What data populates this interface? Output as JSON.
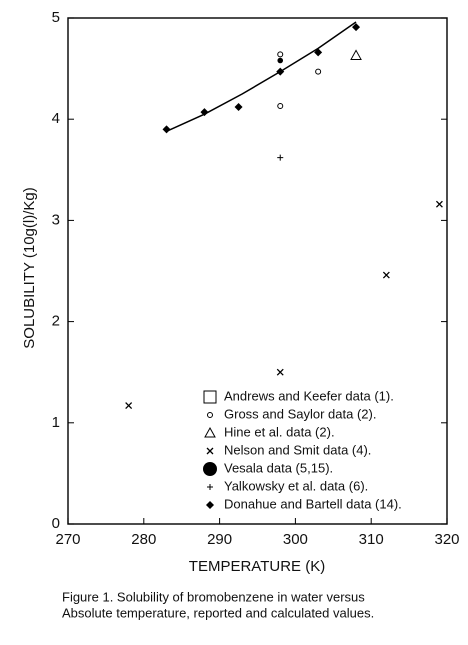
{
  "chart_data": {
    "type": "scatter",
    "xlabel": "TEMPERATURE (K)",
    "ylabel": "SOLUBILITY (10g(l)/Kg)",
    "caption": [
      "Figure 1. Solubility of bromobenzene in water versus",
      "Absolute temperature, reported and calculated values."
    ],
    "xlim": [
      270,
      320
    ],
    "xticks": [
      270,
      280,
      290,
      300,
      310,
      320
    ],
    "ylim": [
      0,
      5
    ],
    "yticks": [
      0,
      1,
      2,
      3,
      4,
      5
    ],
    "color": "#000000",
    "curve": {
      "x": [
        283,
        288,
        293,
        298,
        303,
        308
      ],
      "values": [
        3.88,
        4.05,
        4.25,
        4.47,
        4.7,
        4.96
      ]
    },
    "series": [
      {
        "name": "Andrews and Keefer data (1).",
        "marker": "square",
        "x": [],
        "values": []
      },
      {
        "name": "Gross and Saylor data (2).",
        "marker": "circle-open",
        "x": [
          298,
          298,
          303
        ],
        "values": [
          4.64,
          4.13,
          4.47
        ]
      },
      {
        "name": "Hine et al. data (2).",
        "marker": "triangle",
        "x": [
          308
        ],
        "values": [
          4.63
        ]
      },
      {
        "name": "Nelson and Smit data (4).",
        "marker": "cross",
        "x": [
          278,
          298,
          312,
          319
        ],
        "values": [
          1.17,
          1.5,
          2.46,
          3.16
        ]
      },
      {
        "name": "Vesala data (5,15).",
        "marker": "circle-filled",
        "x": [
          298
        ],
        "values": [
          4.58
        ]
      },
      {
        "name": "Yalkowsky et al. data (6).",
        "marker": "plus",
        "x": [
          298
        ],
        "values": [
          3.62
        ]
      },
      {
        "name": "Donahue and Bartell data (14).",
        "marker": "diamond",
        "x": [
          283,
          288,
          292.5,
          298,
          303,
          308
        ],
        "values": [
          3.9,
          4.07,
          4.12,
          4.47,
          4.66,
          4.91
        ]
      }
    ]
  }
}
